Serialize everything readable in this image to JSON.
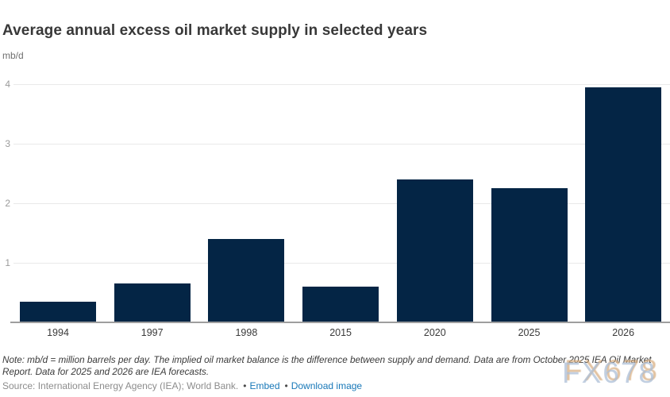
{
  "chart": {
    "title": "Average annual excess oil market supply in selected years",
    "units": "mb/d"
  },
  "chart_data": {
    "type": "bar",
    "categories": [
      "1994",
      "1997",
      "1998",
      "2015",
      "2020",
      "2025",
      "2026"
    ],
    "values": [
      0.35,
      0.65,
      1.4,
      0.6,
      2.4,
      2.25,
      3.95
    ],
    "title": "Average annual excess oil market supply in selected years",
    "xlabel": "",
    "ylabel": "mb/d",
    "ylim": [
      0,
      4.2
    ],
    "yticks": [
      1,
      2,
      3,
      4
    ],
    "grid": true,
    "legend": false,
    "bar_color": "#042545"
  },
  "footer": {
    "note_line1": "Note: mb/d = million barrels per day. The implied oil market balance is the difference between supply and demand. Data are from October 2025 IEA Oil Market",
    "note_line2": "Report. Data for 2025 and 2026 are IEA forecasts.",
    "source": "Source: International Energy Agency (IEA); World Bank.",
    "bullet": "•",
    "links": [
      "Embed",
      "Download image"
    ]
  },
  "watermark": {
    "text": "FX678"
  },
  "colors": {
    "bar": "#042545",
    "gridline": "#e9e9e9",
    "axis_line": "#9e9e9e",
    "ytick_text": "#9b9b9b",
    "xtick_text": "#3a3a3a",
    "title_text": "#383838",
    "link_blue": "#1878b8",
    "source_text": "#8c8c8c"
  }
}
